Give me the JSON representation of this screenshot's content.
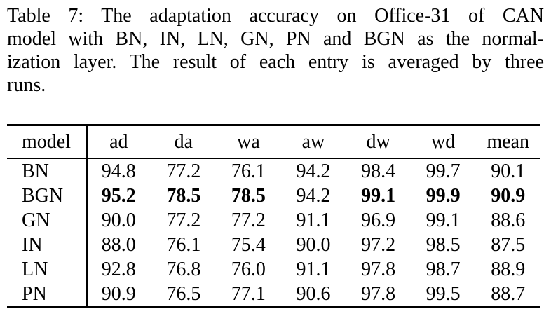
{
  "caption": {
    "lines": [
      "Table 7: The adaptation accuracy on Office-31 of CAN",
      "model with BN, IN, LN, GN, PN and BGN as the normal-",
      "ization layer. The result of each entry is averaged by three",
      "runs."
    ]
  },
  "table": {
    "columns": [
      "model",
      "ad",
      "da",
      "wa",
      "aw",
      "dw",
      "wd",
      "mean"
    ],
    "rows": [
      {
        "model": "BN",
        "values": [
          "94.8",
          "77.2",
          "76.1",
          "94.2",
          "98.4",
          "99.7",
          "90.1"
        ]
      },
      {
        "model": "BGN",
        "values": [
          "95.2",
          "78.5",
          "78.5",
          "94.2",
          "99.1",
          "99.9",
          "90.9"
        ]
      },
      {
        "model": "GN",
        "values": [
          "90.0",
          "77.2",
          "77.2",
          "91.1",
          "96.9",
          "99.1",
          "88.6"
        ]
      },
      {
        "model": "IN",
        "values": [
          "88.0",
          "76.1",
          "75.4",
          "90.0",
          "97.2",
          "98.5",
          "87.5"
        ]
      },
      {
        "model": "LN",
        "values": [
          "92.8",
          "76.8",
          "76.0",
          "91.1",
          "97.8",
          "98.7",
          "88.9"
        ]
      },
      {
        "model": "PN",
        "values": [
          "90.9",
          "76.5",
          "77.1",
          "90.6",
          "97.8",
          "99.5",
          "88.7"
        ]
      }
    ]
  },
  "colors": {
    "text": "#000000",
    "background": "#ffffff"
  }
}
